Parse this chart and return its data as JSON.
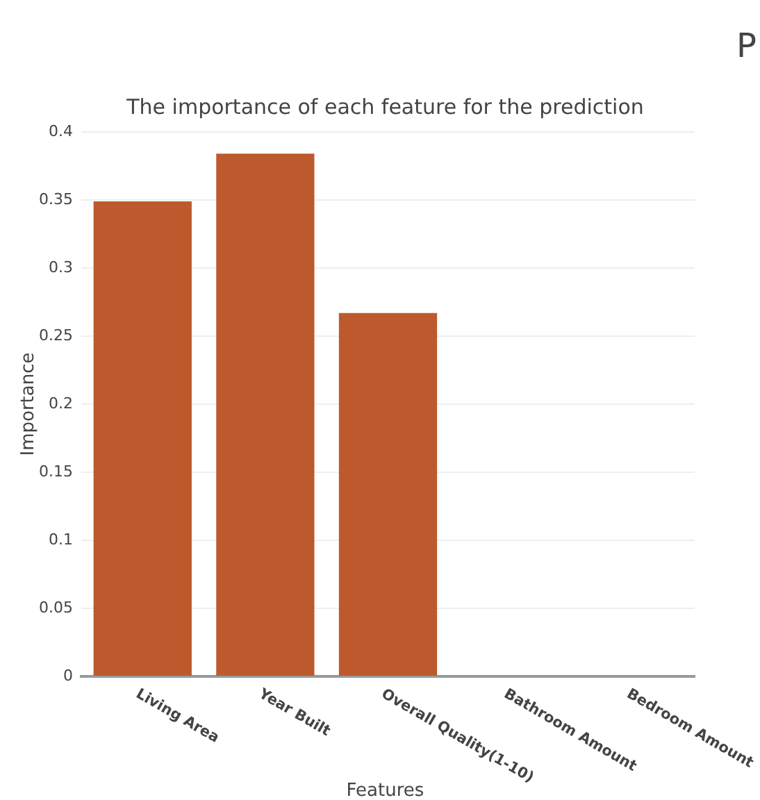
{
  "chart_data": {
    "type": "bar",
    "title": "The importance of each feature for the prediction",
    "xlabel": "Features",
    "ylabel": "Importance",
    "categories": [
      "Living Area",
      "Year Built",
      "Overall Quality(1-10)",
      "Bathroom Amount",
      "Bedroom Amount"
    ],
    "values": [
      0.349,
      0.384,
      0.267,
      0,
      0
    ],
    "color": "#bc5a2d",
    "ylim": [
      0,
      0.4
    ],
    "yticks": [
      0,
      0.05,
      0.1,
      0.15,
      0.2,
      0.25,
      0.3,
      0.35,
      0.4
    ],
    "grid": "y",
    "legend": false,
    "annotations": [
      "P"
    ]
  }
}
